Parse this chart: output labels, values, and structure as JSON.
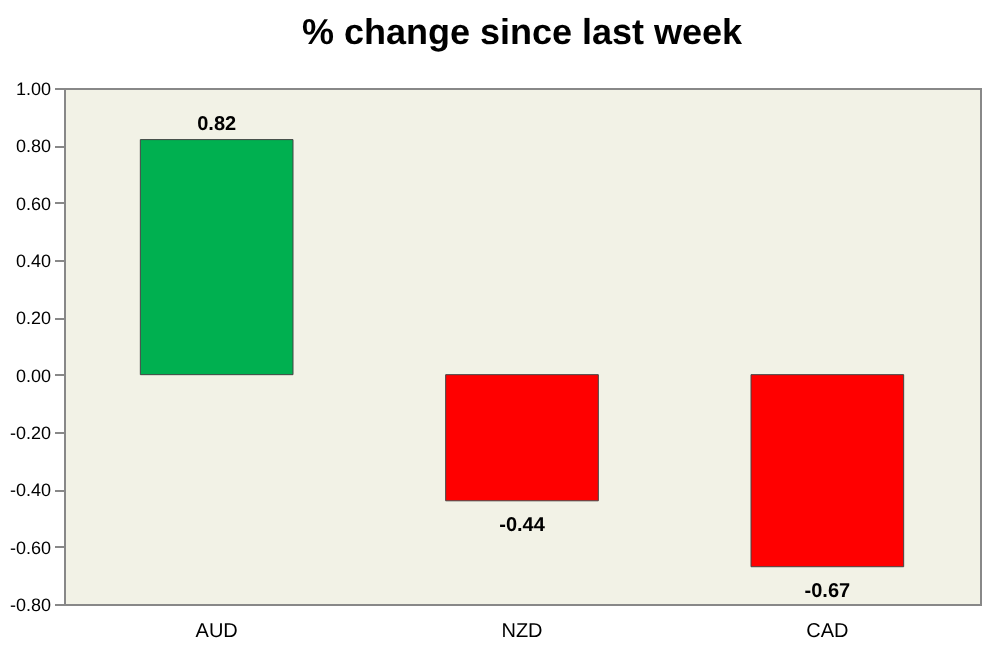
{
  "chart_data": {
    "type": "bar",
    "title": "% change since last week",
    "categories": [
      "AUD",
      "NZD",
      "CAD"
    ],
    "values": [
      0.82,
      -0.44,
      -0.67
    ],
    "colors": [
      "#00b050",
      "#ff0000",
      "#ff0000"
    ],
    "ylim": [
      -0.8,
      1.0
    ],
    "yticks": [
      {
        "value": -0.8,
        "label": "-0.80"
      },
      {
        "value": -0.6,
        "label": "-0.60"
      },
      {
        "value": -0.4,
        "label": "-0.40"
      },
      {
        "value": -0.2,
        "label": "-0.20"
      },
      {
        "value": 0,
        "label": "0.00"
      },
      {
        "value": 0.2,
        "label": "0.20"
      },
      {
        "value": 0.4,
        "label": "0.40"
      },
      {
        "value": 0.6,
        "label": "0.60"
      },
      {
        "value": 0.8,
        "label": "0.80"
      },
      {
        "value": 1.0,
        "label": "1.00"
      }
    ],
    "data_labels": true,
    "grid": false
  }
}
